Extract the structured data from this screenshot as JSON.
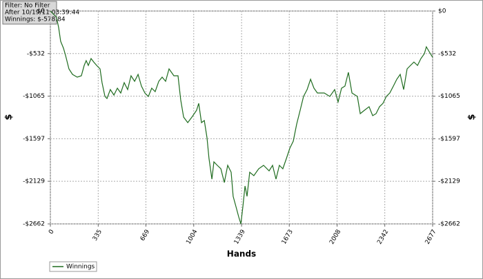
{
  "chart_data": {
    "type": "line",
    "annotations": [
      "Filter: No Filter",
      "After 10/19/11 03:39:44",
      "Winnings: $-578.84"
    ],
    "x_label": "Hands",
    "y_label": "$",
    "x": [
      0,
      43,
      58,
      72,
      92,
      106,
      130,
      155,
      188,
      217,
      237,
      251,
      266,
      285,
      304,
      324,
      348,
      362,
      382,
      396,
      420,
      445,
      469,
      493,
      517,
      541,
      565,
      590,
      614,
      638,
      662,
      686,
      710,
      734,
      759,
      783,
      807,
      831,
      865,
      894,
      913,
      933,
      962,
      991,
      1024,
      1039,
      1058,
      1078,
      1097,
      1111,
      1131,
      1145,
      1169,
      1194,
      1218,
      1242,
      1266,
      1280,
      1300,
      1319,
      1334,
      1348,
      1363,
      1377,
      1396,
      1425,
      1459,
      1493,
      1532,
      1556,
      1580,
      1604,
      1628,
      1653,
      1677,
      1701,
      1725,
      1749,
      1773,
      1798,
      1822,
      1846,
      1870,
      1918,
      1957,
      1991,
      2015,
      2039,
      2063,
      2087,
      2112,
      2150,
      2170,
      2199,
      2232,
      2257,
      2281,
      2305,
      2329,
      2353,
      2377,
      2402,
      2426,
      2450,
      2474,
      2498,
      2522,
      2546,
      2571,
      2595,
      2619,
      2633,
      2653,
      2677
    ],
    "series": [
      {
        "name": "Winnings",
        "color": "#1e6b1e",
        "values": [
          0,
          -78,
          -207,
          -379,
          -465,
          -551,
          -724,
          -793,
          -827,
          -810,
          -681,
          -620,
          -681,
          -594,
          -638,
          -681,
          -724,
          -896,
          -1068,
          -1094,
          -982,
          -1051,
          -965,
          -1025,
          -896,
          -982,
          -810,
          -879,
          -793,
          -939,
          -1025,
          -1068,
          -965,
          -1008,
          -879,
          -827,
          -879,
          -724,
          -810,
          -810,
          -1111,
          -1327,
          -1396,
          -1327,
          -1241,
          -1154,
          -1396,
          -1370,
          -1585,
          -1844,
          -2102,
          -1887,
          -1930,
          -1973,
          -2145,
          -1930,
          -2016,
          -2317,
          -2447,
          -2576,
          -2662,
          -2447,
          -2188,
          -2317,
          -2016,
          -2059,
          -1973,
          -1930,
          -1999,
          -1930,
          -2102,
          -1930,
          -1973,
          -1844,
          -1714,
          -1628,
          -1413,
          -1241,
          -1068,
          -982,
          -853,
          -965,
          -1025,
          -1025,
          -1068,
          -982,
          -1137,
          -965,
          -939,
          -767,
          -1025,
          -1068,
          -1284,
          -1241,
          -1197,
          -1309,
          -1284,
          -1197,
          -1154,
          -1068,
          -1025,
          -939,
          -853,
          -793,
          -982,
          -724,
          -681,
          -638,
          -681,
          -594,
          -534,
          -448,
          -508,
          -578.84
        ]
      }
    ],
    "xlim": [
      0,
      2677
    ],
    "xticks": [
      0,
      335,
      669,
      1004,
      1339,
      1673,
      2008,
      2342,
      2677
    ],
    "ylim": [
      -2662,
      0
    ],
    "yticks": [
      {
        "value": 0,
        "label": "$0"
      },
      {
        "value": -532,
        "label": "-$532"
      },
      {
        "value": -1065,
        "label": "-$1065"
      },
      {
        "value": -1597,
        "label": "-$1597"
      },
      {
        "value": -2129,
        "label": "-$2129"
      },
      {
        "value": -2662,
        "label": "-$2662"
      }
    ],
    "grid": true,
    "legend": "bottom-left"
  }
}
